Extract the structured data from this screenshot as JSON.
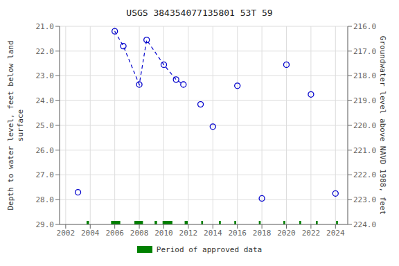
{
  "chart_data": {
    "type": "scatter",
    "title": "USGS 384354077135801 53T 59",
    "y_label": "Depth to water level, feet below land\nsurface",
    "y2_label": "Groundwater level above NAVD 1988, feet",
    "xlim": [
      2001.5,
      2025.0
    ],
    "xticks": [
      2002,
      2004,
      2006,
      2008,
      2010,
      2012,
      2014,
      2016,
      2018,
      2020,
      2022,
      2024
    ],
    "ylim": [
      29.0,
      21.0
    ],
    "yticks": [
      {
        "value": 21.0,
        "label": "21.0"
      },
      {
        "value": 22.0,
        "label": "22.0"
      },
      {
        "value": 23.0,
        "label": "23.0"
      },
      {
        "value": 24.0,
        "label": "24.0"
      },
      {
        "value": 25.0,
        "label": "25.0"
      },
      {
        "value": 26.0,
        "label": "26.0"
      },
      {
        "value": 27.0,
        "label": "27.0"
      },
      {
        "value": 28.0,
        "label": "28.0"
      },
      {
        "value": 29.0,
        "label": "29.0"
      }
    ],
    "y2lim": [
      224.0,
      216.0
    ],
    "y2ticks": [
      {
        "value": 224.0,
        "label": "224.0"
      },
      {
        "value": 223.0,
        "label": "223.0"
      },
      {
        "value": 222.0,
        "label": "222.0"
      },
      {
        "value": 221.0,
        "label": "221.0"
      },
      {
        "value": 220.0,
        "label": "220.0"
      },
      {
        "value": 219.0,
        "label": "219.0"
      },
      {
        "value": 218.0,
        "label": "218.0"
      },
      {
        "value": 217.0,
        "label": "217.0"
      },
      {
        "value": 216.0,
        "label": "216.0"
      }
    ],
    "grid": true,
    "series": [
      {
        "type": "scatter",
        "marker": "open_circle",
        "color": "#0000cc",
        "x": [
          2003,
          2006,
          2006.7,
          2008,
          2008.6,
          2010,
          2011,
          2011.6,
          2013,
          2014,
          2016,
          2018,
          2020,
          2022,
          2024
        ],
        "values": [
          27.7,
          21.2,
          21.8,
          23.35,
          21.55,
          22.55,
          23.15,
          23.35,
          24.15,
          25.05,
          23.4,
          27.95,
          22.55,
          23.75,
          27.75
        ]
      },
      {
        "type": "line",
        "line_style": "dashed",
        "color": "#0000cc",
        "x": [
          2006,
          2006.7,
          2008,
          2008.6,
          2010,
          2011,
          2011.6
        ],
        "values": [
          21.2,
          21.8,
          23.35,
          21.55,
          22.55,
          23.15,
          23.35
        ]
      },
      {
        "type": "span",
        "name": "Period of approved data",
        "color": "#008000",
        "spans": [
          [
            2003.7,
            2003.9
          ],
          [
            2005.7,
            2006.45
          ],
          [
            2007.6,
            2008.3
          ],
          [
            2009.25,
            2009.45
          ],
          [
            2009.9,
            2010.7
          ],
          [
            2011.7,
            2011.95
          ],
          [
            2013.05,
            2013.2
          ],
          [
            2014.5,
            2014.65
          ],
          [
            2015.75,
            2015.9
          ],
          [
            2017.75,
            2017.9
          ],
          [
            2019.75,
            2019.9
          ],
          [
            2021.05,
            2021.2
          ],
          [
            2022.4,
            2022.55
          ],
          [
            2024.05,
            2024.2
          ]
        ]
      }
    ]
  }
}
